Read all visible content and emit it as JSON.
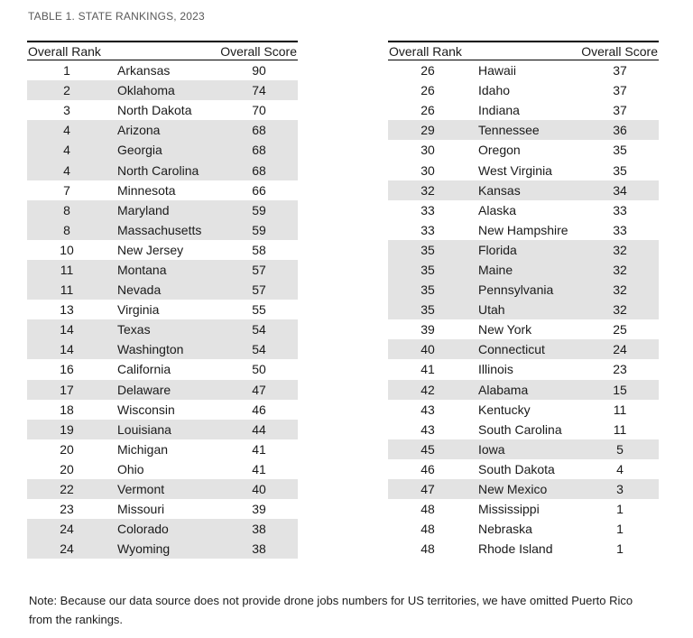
{
  "title": "TABLE 1. STATE RANKINGS, 2023",
  "tables": [
    {
      "headers": {
        "rank": "Overall Rank",
        "score": "Overall Score"
      },
      "rows": [
        [
          "1",
          "Arkansas",
          "90"
        ],
        [
          "2",
          "Oklahoma",
          "74"
        ],
        [
          "3",
          "North Dakota",
          "70"
        ],
        [
          "4",
          "Arizona",
          "68"
        ],
        [
          "4",
          "Georgia",
          "68"
        ],
        [
          "4",
          "North Carolina",
          "68"
        ],
        [
          "7",
          "Minnesota",
          "66"
        ],
        [
          "8",
          "Maryland",
          "59"
        ],
        [
          "8",
          "Massachusetts",
          "59"
        ],
        [
          "10",
          "New Jersey",
          "58"
        ],
        [
          "11",
          "Montana",
          "57"
        ],
        [
          "11",
          "Nevada",
          "57"
        ],
        [
          "13",
          "Virginia",
          "55"
        ],
        [
          "14",
          "Texas",
          "54"
        ],
        [
          "14",
          "Washington",
          "54"
        ],
        [
          "16",
          "California",
          "50"
        ],
        [
          "17",
          "Delaware",
          "47"
        ],
        [
          "18",
          "Wisconsin",
          "46"
        ],
        [
          "19",
          "Louisiana",
          "44"
        ],
        [
          "20",
          "Michigan",
          "41"
        ],
        [
          "20",
          "Ohio",
          "41"
        ],
        [
          "22",
          "Vermont",
          "40"
        ],
        [
          "23",
          "Missouri",
          "39"
        ],
        [
          "24",
          "Colorado",
          "38"
        ],
        [
          "24",
          "Wyoming",
          "38"
        ]
      ]
    },
    {
      "headers": {
        "rank": "Overall Rank",
        "score": "Overall Score"
      },
      "rows": [
        [
          "26",
          "Hawaii",
          "37"
        ],
        [
          "26",
          "Idaho",
          "37"
        ],
        [
          "26",
          "Indiana",
          "37"
        ],
        [
          "29",
          "Tennessee",
          "36"
        ],
        [
          "30",
          "Oregon",
          "35"
        ],
        [
          "30",
          "West Virginia",
          "35"
        ],
        [
          "32",
          "Kansas",
          "34"
        ],
        [
          "33",
          "Alaska",
          "33"
        ],
        [
          "33",
          "New Hampshire",
          "33"
        ],
        [
          "35",
          "Florida",
          "32"
        ],
        [
          "35",
          "Maine",
          "32"
        ],
        [
          "35",
          "Pennsylvania",
          "32"
        ],
        [
          "35",
          "Utah",
          "32"
        ],
        [
          "39",
          "New York",
          "25"
        ],
        [
          "40",
          "Connecticut",
          "24"
        ],
        [
          "41",
          "Illinois",
          "23"
        ],
        [
          "42",
          "Alabama",
          "15"
        ],
        [
          "43",
          "Kentucky",
          "11"
        ],
        [
          "43",
          "South Carolina",
          "11"
        ],
        [
          "45",
          "Iowa",
          "5"
        ],
        [
          "46",
          "South Dakota",
          "4"
        ],
        [
          "47",
          "New Mexico",
          "3"
        ],
        [
          "48",
          "Mississippi",
          "1"
        ],
        [
          "48",
          "Nebraska",
          "1"
        ],
        [
          "48",
          "Rhode Island",
          "1"
        ]
      ]
    }
  ],
  "note": {
    "line1": "Note: Because our data source does not provide drone jobs numbers for US territories, we have omitted Puerto Rico",
    "line2": "from the rankings."
  },
  "colors": {
    "row_shade": "#e3e3e3",
    "title_text": "#595959",
    "body_text": "#1a1a1a",
    "rule": "#000000"
  }
}
